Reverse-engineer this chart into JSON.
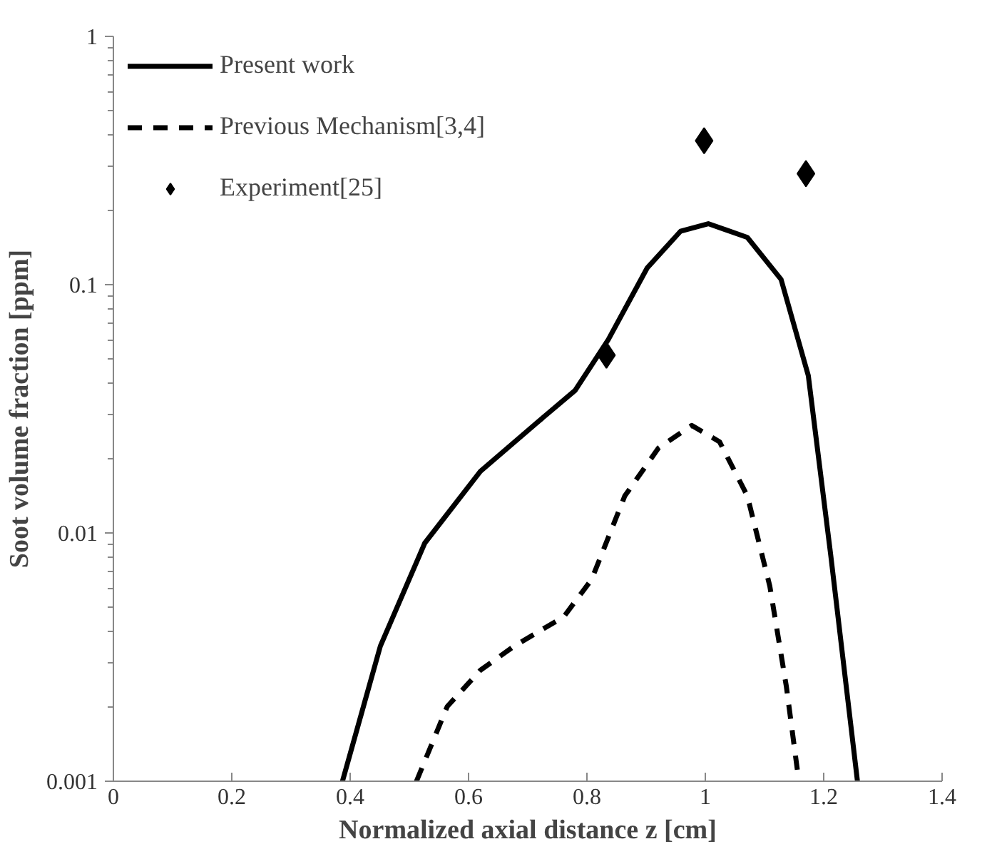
{
  "chart_data": {
    "type": "line",
    "xlabel": "Normalized axial distance z [cm]",
    "ylabel": "Soot volume fraction [ppm]",
    "log": "y",
    "xlim": [
      0,
      1.4
    ],
    "xticks": [
      0,
      0.2,
      0.4,
      0.6,
      0.8,
      1,
      1.2,
      1.4
    ],
    "ylim": [
      0.001,
      1
    ],
    "yticks": [
      0.001,
      0.01,
      0.1,
      1
    ],
    "grid": false,
    "legend": "top left",
    "series": [
      {
        "name": "Present work",
        "line_style": "solid",
        "color": "#000000",
        "x": [
          0.387,
          0.451,
          0.526,
          0.62,
          0.714,
          0.78,
          0.836,
          0.902,
          0.958,
          1.005,
          1.071,
          1.128,
          1.174,
          1.212,
          1.257
        ],
        "values": [
          0.001,
          0.0035,
          0.0091,
          0.0177,
          0.0276,
          0.0375,
          0.06,
          0.117,
          0.164,
          0.176,
          0.155,
          0.105,
          0.043,
          0.0081,
          0.001
        ]
      },
      {
        "name": "Previous Mechanism[3,4]",
        "line_style": "dashed",
        "color": "#000000",
        "x": [
          0.512,
          0.564,
          0.62,
          0.677,
          0.761,
          0.808,
          0.864,
          0.921,
          0.977,
          1.024,
          1.071,
          1.109,
          1.137,
          1.158
        ],
        "values": [
          0.001,
          0.002,
          0.0028,
          0.0035,
          0.0046,
          0.0065,
          0.0141,
          0.022,
          0.0271,
          0.0233,
          0.0141,
          0.0061,
          0.0024,
          0.001
        ]
      },
      {
        "name": "Experiment[25]",
        "type": "scatter",
        "marker": "diamond",
        "color": "#000000",
        "x": [
          0.833,
          0.998,
          1.17
        ],
        "values": [
          0.052,
          0.38,
          0.28
        ]
      }
    ]
  }
}
